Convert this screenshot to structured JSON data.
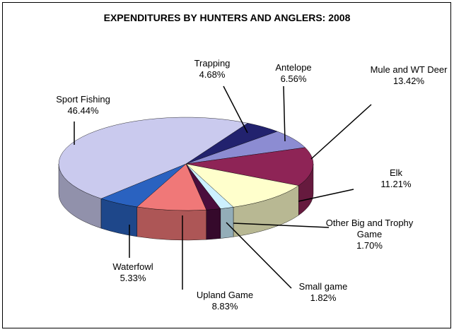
{
  "chart_data": {
    "type": "pie",
    "title": "EXPENDITURES BY HUNTERS AND ANGLERS: 2008",
    "categories": [
      "Trapping",
      "Antelope",
      "Mule and WT Deer",
      "Elk",
      "Other Big and Trophy Game",
      "Small game",
      "Upland Game",
      "Waterfowl",
      "Sport Fishing"
    ],
    "values": [
      4.68,
      6.56,
      13.42,
      11.21,
      1.7,
      1.82,
      8.83,
      5.33,
      46.44
    ],
    "value_labels": [
      "4.68%",
      "6.56%",
      "13.42%",
      "11.21%",
      "1.70%",
      "1.82%",
      "8.83%",
      "5.33%",
      "46.44%"
    ],
    "colors": [
      "#22226e",
      "#8c8cd2",
      "#8e2456",
      "#ffffcc",
      "#ccf0ff",
      "#4a0d3c",
      "#f07878",
      "#2a62c0",
      "#cacaee"
    ]
  }
}
